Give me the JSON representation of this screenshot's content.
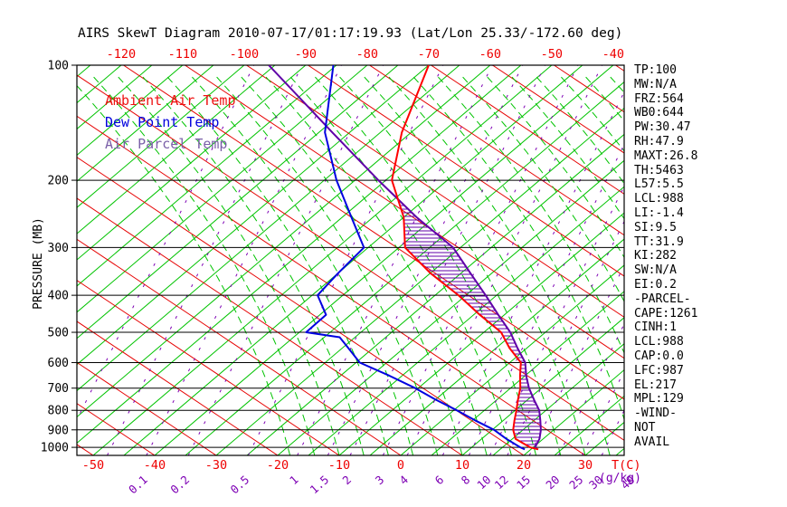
{
  "title": "AIRS SkewT Diagram 2010-07-17/01:17:19.93 (Lat/Lon 25.33/-172.60 deg)",
  "legend": {
    "items": [
      {
        "label": "Ambient Air Temp",
        "color": "#ee1111"
      },
      {
        "label": "Dew Point Temp",
        "color": "#0000dd"
      },
      {
        "label": "Air Parcel Temp",
        "color": "#7a5fa8"
      }
    ]
  },
  "axes": {
    "pressure_label": "PRESSURE (MB)",
    "pressure_ticks_mb": [
      100,
      200,
      300,
      400,
      500,
      600,
      700,
      800,
      900,
      1000
    ],
    "top_temp_ticks_c": [
      -120,
      -110,
      -100,
      -90,
      -80,
      -70,
      -60,
      -50,
      -40
    ],
    "bottom_temp_ticks_c": [
      -50,
      -40,
      -30,
      -20,
      -10,
      0,
      10,
      20,
      30
    ],
    "temp_unit_label": "T(C)",
    "mixing_unit_label": "(g/kg)",
    "mixing_ratio_tick_labels": [
      0.1,
      0.2,
      0.5,
      1,
      1.5,
      2,
      3,
      4,
      6,
      8,
      10,
      12,
      15,
      20,
      25,
      30,
      40
    ]
  },
  "side_panel": {
    "rows": [
      "TP:100",
      "MW:N/A",
      "FRZ:564",
      "WB0:644",
      "PW:30.47",
      "RH:47.9",
      "MAXT:26.8",
      "TH:5463",
      "L57:5.5",
      "LCL:988",
      "LI:-1.4",
      "SI:9.5",
      "TT:31.9",
      "KI:282",
      "SW:N/A",
      "EI:0.2",
      "-PARCEL-",
      "CAPE:1261",
      "CINH:1",
      "LCL:988",
      "CAP:0.0",
      "LFC:987",
      "EL:217",
      "MPL:129",
      "-WIND-",
      "NOT",
      "AVAIL"
    ]
  },
  "chart_data": {
    "type": "line",
    "subtype": "skew-t-log-p",
    "y_axis": {
      "label": "PRESSURE (MB)",
      "scale": "log",
      "range_mb": [
        100,
        1050
      ],
      "ticks_mb": [
        100,
        200,
        300,
        400,
        500,
        600,
        700,
        800,
        900,
        1000
      ]
    },
    "x_axis": {
      "label": "T(C)",
      "surface_ticks_c": [
        -50,
        30
      ],
      "top_ticks_c": [
        -120,
        -40
      ],
      "tick_step_c": 10,
      "skew": "isotherms slant up-right"
    },
    "secondary_axis": {
      "label": "(g/kg)",
      "ticks_g_per_kg": [
        0.1,
        0.2,
        0.5,
        1,
        1.5,
        2,
        3,
        4,
        6,
        8,
        10,
        12,
        15,
        20,
        25,
        30,
        40
      ]
    },
    "series": [
      {
        "name": "Ambient Air Temp",
        "color": "#ff0000",
        "points_p_mb_t_c": [
          [
            100,
            -70
          ],
          [
            150,
            -61.5
          ],
          [
            200,
            -54
          ],
          [
            250,
            -45
          ],
          [
            300,
            -39
          ],
          [
            350,
            -30
          ],
          [
            400,
            -21.2
          ],
          [
            450,
            -14
          ],
          [
            500,
            -7.2
          ],
          [
            550,
            -2.8
          ],
          [
            600,
            1.8
          ],
          [
            650,
            4.2
          ],
          [
            700,
            6.6
          ],
          [
            750,
            8.4
          ],
          [
            800,
            10.2
          ],
          [
            850,
            11.8
          ],
          [
            900,
            13.4
          ],
          [
            950,
            15.5
          ],
          [
            1000,
            19.5
          ],
          [
            1012,
            21.2
          ]
        ]
      },
      {
        "name": "Dew Point Temp",
        "color": "#0000e0",
        "points_p_mb_t_c": [
          [
            100,
            -85.5
          ],
          [
            150,
            -74
          ],
          [
            200,
            -63
          ],
          [
            250,
            -53.5
          ],
          [
            300,
            -45.7
          ],
          [
            350,
            -45
          ],
          [
            400,
            -44.1
          ],
          [
            450,
            -39
          ],
          [
            500,
            -38.9
          ],
          [
            515,
            -32.5
          ],
          [
            550,
            -29
          ],
          [
            600,
            -24.4
          ],
          [
            650,
            -17
          ],
          [
            700,
            -10.5
          ],
          [
            750,
            -5
          ],
          [
            800,
            0.5
          ],
          [
            850,
            5.4
          ],
          [
            900,
            10.3
          ],
          [
            950,
            14
          ],
          [
            1000,
            17.9
          ],
          [
            1012,
            19
          ]
        ]
      },
      {
        "name": "Air Parcel Temp",
        "color": "#6000a8",
        "points_p_mb_t_c": [
          [
            100,
            -96
          ],
          [
            150,
            -72.8
          ],
          [
            200,
            -56.2
          ],
          [
            250,
            -42.9
          ],
          [
            300,
            -31.2
          ],
          [
            350,
            -23.5
          ],
          [
            400,
            -16.8
          ],
          [
            450,
            -11
          ],
          [
            500,
            -5.7
          ],
          [
            550,
            -1.5
          ],
          [
            600,
            2.5
          ],
          [
            650,
            5.2
          ],
          [
            700,
            8
          ],
          [
            750,
            11
          ],
          [
            800,
            13.9
          ],
          [
            850,
            16
          ],
          [
            900,
            17.9
          ],
          [
            950,
            19.4
          ],
          [
            1000,
            20.3
          ],
          [
            1012,
            21
          ]
        ]
      }
    ],
    "hatched_region": "horizontal purple hatching between ambient and parcel curves where parcel is warmer (CAPE area, ~217-990 mb)",
    "grid": {
      "isotherms_c": {
        "min": -145,
        "max": 35,
        "step": 5,
        "color": "#00c300",
        "style": "solid"
      },
      "dry_adiabats_theta_c": {
        "min": -50,
        "max": 130,
        "step": 10,
        "color": "#e60000",
        "style": "solid"
      },
      "moist_adiabats_surface_t_c": {
        "min": -18,
        "max": 70,
        "step": 4,
        "color": "#00c300",
        "style": "dashed"
      },
      "mixing_ratio_lines_gkg": [
        0.02,
        0.05,
        0.1,
        0.2,
        0.5,
        1,
        1.5,
        2,
        3,
        4,
        6,
        8,
        10,
        12,
        15,
        20,
        25,
        30,
        40
      ],
      "mixing_ratio_color": "#7d00b4"
    }
  },
  "colors": {
    "background": "#ffffff",
    "frame": "#000000",
    "tick_label_red": "#ee0000",
    "tick_label_purple": "#7d00b4",
    "hatch": "#6000a8"
  }
}
